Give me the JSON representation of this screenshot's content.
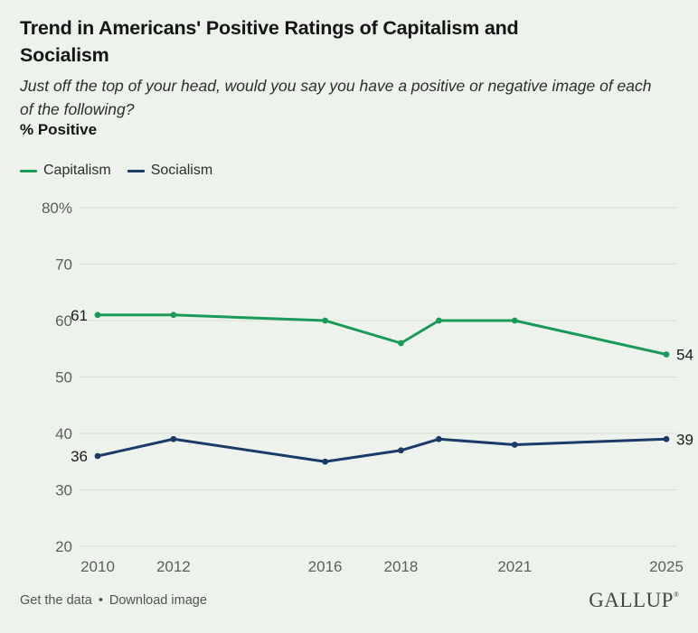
{
  "header": {
    "title": "Trend in Americans' Positive Ratings of Capitalism and Socialism",
    "subtitle": "Just off the top of your head, would you say you have a positive or negative image of each of the following?",
    "measure_label": "% Positive"
  },
  "legend": {
    "items": [
      {
        "label": "Capitalism",
        "color": "#1a9a58"
      },
      {
        "label": "Socialism",
        "color": "#1b3a68"
      }
    ]
  },
  "chart_data": {
    "type": "line",
    "title": "Trend in Americans' Positive Ratings of Capitalism and Socialism",
    "ylabel": "% Positive",
    "x": [
      2010,
      2012,
      2016,
      2018,
      2019,
      2021,
      2025
    ],
    "series": [
      {
        "name": "Capitalism",
        "color": "#1a9a58",
        "values": [
          61,
          61,
          60,
          56,
          60,
          60,
          54
        ],
        "first_label": "61",
        "last_label": "54"
      },
      {
        "name": "Socialism",
        "color": "#1b3a68",
        "values": [
          36,
          39,
          35,
          37,
          39,
          38,
          39
        ],
        "first_label": "36",
        "last_label": "39"
      }
    ],
    "xlim": [
      2010,
      2025
    ],
    "ylim": [
      20,
      80
    ],
    "y_ticks": [
      {
        "value": 80,
        "label": "80%"
      },
      {
        "value": 70,
        "label": "70"
      },
      {
        "value": 60,
        "label": "60"
      },
      {
        "value": 50,
        "label": "50"
      },
      {
        "value": 40,
        "label": "40"
      },
      {
        "value": 30,
        "label": "30"
      },
      {
        "value": 20,
        "label": "20"
      }
    ],
    "x_ticks": [
      {
        "value": 2010,
        "label": "2010"
      },
      {
        "value": 2012,
        "label": "2012"
      },
      {
        "value": 2016,
        "label": "2016"
      },
      {
        "value": 2018,
        "label": "2018"
      },
      {
        "value": 2021,
        "label": "2021"
      },
      {
        "value": 2025,
        "label": "2025"
      }
    ],
    "grid": "horizontal",
    "legend_position": "top-left"
  },
  "footer": {
    "links": [
      "Get the data",
      "Download image"
    ],
    "separator": "•",
    "brand": "GALLUP",
    "brand_mark": "®"
  },
  "colors": {
    "background": "#edf3ec",
    "gridline": "#dadfd5",
    "axis_text": "#5d5d5d",
    "data_label": "#1a1a1a",
    "title_text": "#151515",
    "subtitle_text": "#2d2d2d",
    "footer_text": "#535353",
    "brand_text": "#454545"
  }
}
